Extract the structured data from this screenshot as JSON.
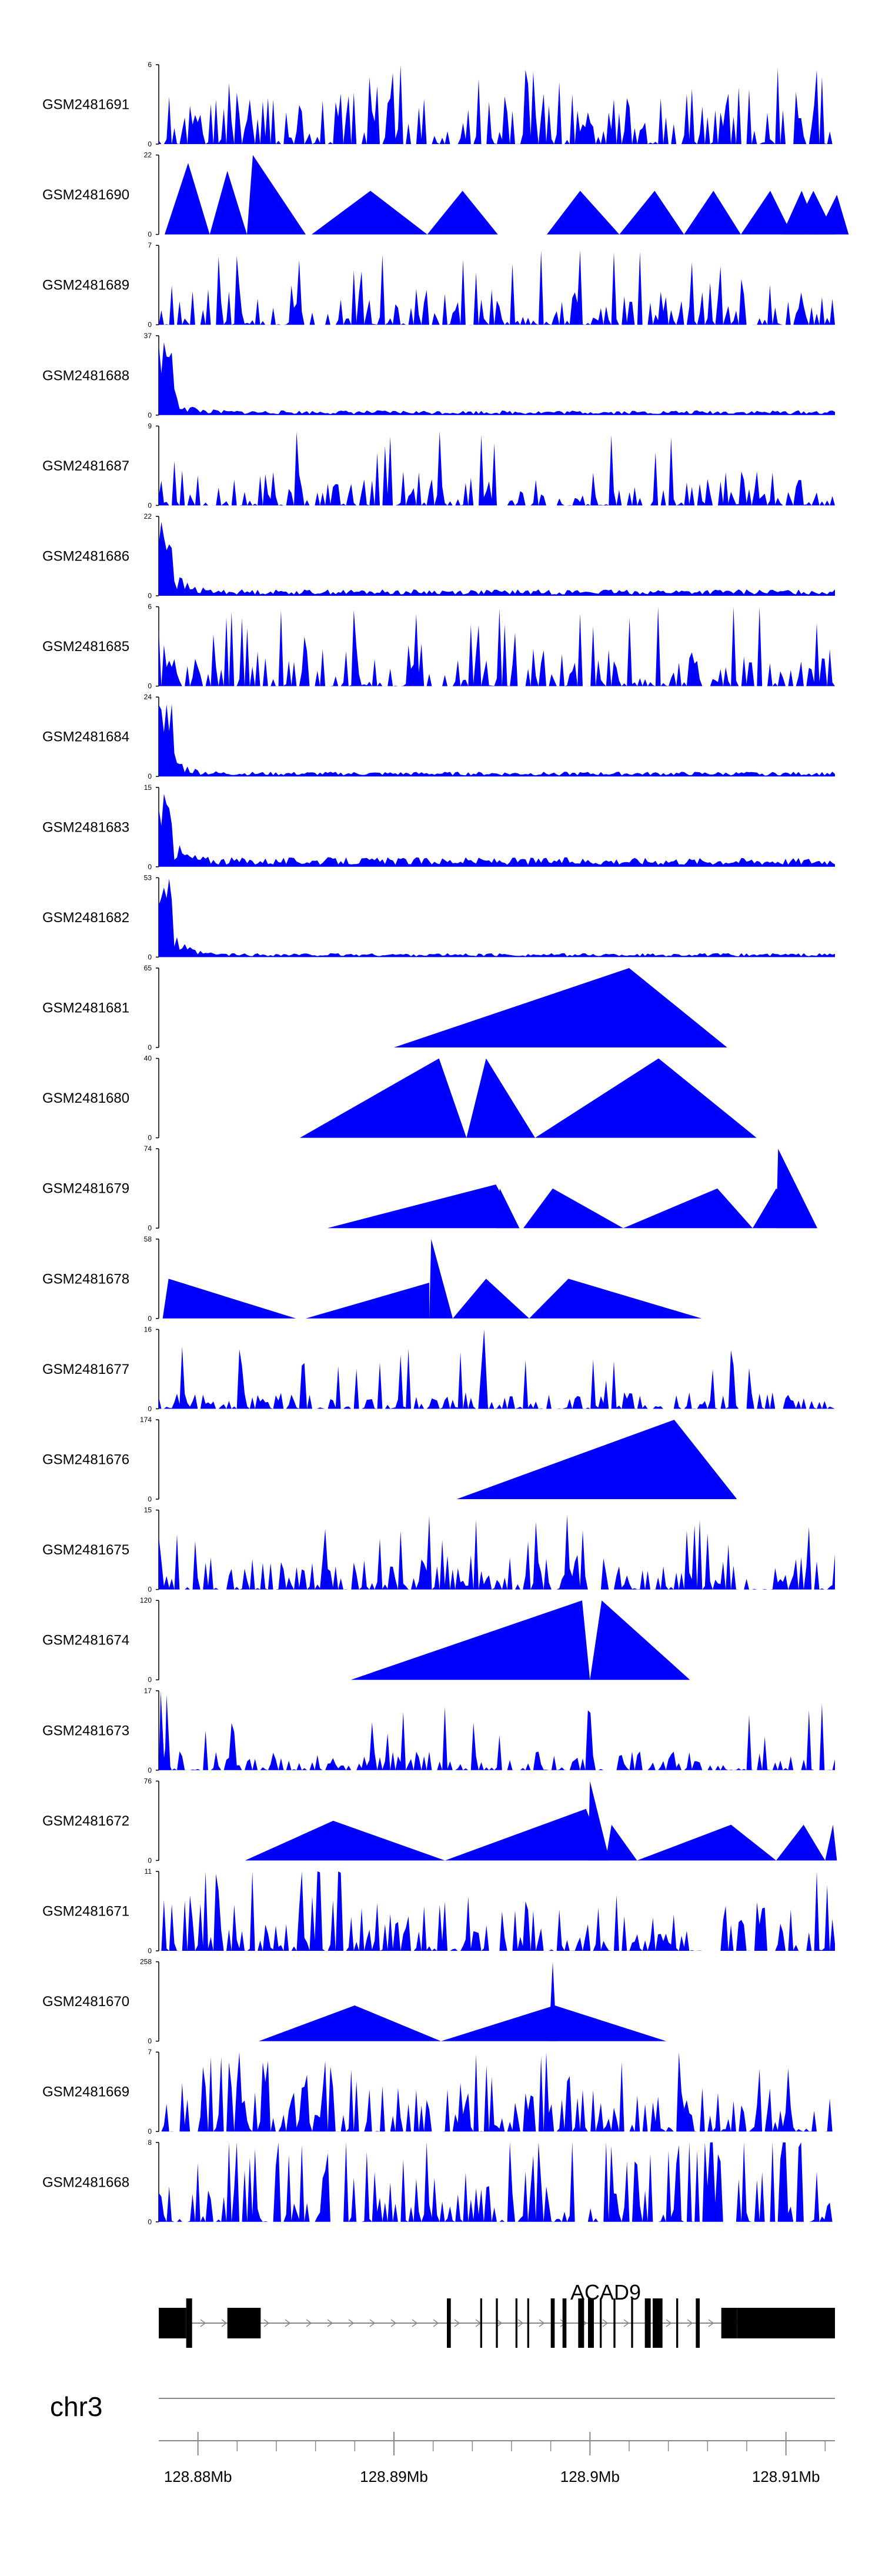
{
  "chart_data": {
    "type": "area",
    "title": "",
    "chromosome": "chr3",
    "gene": "ACAD9",
    "x_unit": "Mb",
    "xlim": [
      128.878,
      128.9125
    ],
    "x_ticks": [
      128.88,
      128.89,
      128.9,
      128.91
    ],
    "x_tick_labels": [
      "128.88Mb",
      "128.89Mb",
      "128.9Mb",
      "128.91Mb"
    ],
    "fill_color": "#0000ff",
    "gene_color": "#000000",
    "tracks": [
      {
        "id": "GSM2481691",
        "ymax": "6",
        "type": "noise",
        "seed": 11,
        "density": 1.2,
        "spike": 0.55
      },
      {
        "id": "GSM2481690",
        "ymax": "22",
        "type": "peaks",
        "peaks": [
          [
            128.8783,
            128.8795,
            128.8806,
            0.9
          ],
          [
            128.8806,
            128.8815,
            128.8825,
            0.8
          ],
          [
            128.8825,
            128.8828,
            128.8855,
            1.0
          ],
          [
            128.8828,
            128.8835,
            128.8828,
            0.0
          ],
          [
            128.8858,
            128.8888,
            128.8917,
            0.55
          ],
          [
            128.8917,
            128.8935,
            128.8953,
            0.55
          ],
          [
            128.8978,
            128.8995,
            128.9015,
            0.55
          ],
          [
            128.9015,
            128.9033,
            128.9048,
            0.55
          ],
          [
            128.9048,
            128.9063,
            128.9077,
            0.55
          ],
          [
            128.9077,
            128.9092,
            128.9103,
            0.55
          ],
          [
            128.9103,
            128.9114,
            128.9125,
            0.55
          ],
          [
            128.9098,
            128.9108,
            128.9117,
            0.55
          ],
          [
            128.9116,
            128.9126,
            128.9132,
            0.5
          ]
        ]
      },
      {
        "id": "GSM2481689",
        "ymax": "7",
        "type": "noise",
        "seed": 22,
        "density": 1.0,
        "spike": 0.5
      },
      {
        "id": "GSM2481688",
        "ymax": "37",
        "type": "decay",
        "seed": 33,
        "start": 1.0,
        "base": 0.06
      },
      {
        "id": "GSM2481687",
        "ymax": "9",
        "type": "noise",
        "seed": 44,
        "density": 0.9,
        "spike": 0.5
      },
      {
        "id": "GSM2481686",
        "ymax": "22",
        "type": "decay",
        "seed": 55,
        "start": 1.0,
        "base": 0.08
      },
      {
        "id": "GSM2481685",
        "ymax": "6",
        "type": "noise",
        "seed": 66,
        "density": 0.9,
        "spike": 0.6
      },
      {
        "id": "GSM2481684",
        "ymax": "24",
        "type": "decay",
        "seed": 77,
        "start": 1.0,
        "base": 0.06
      },
      {
        "id": "GSM2481683",
        "ymax": "15",
        "type": "decay",
        "seed": 88,
        "start": 0.95,
        "base": 0.12
      },
      {
        "id": "GSM2481682",
        "ymax": "53",
        "type": "decay",
        "seed": 99,
        "start": 1.0,
        "base": 0.05
      },
      {
        "id": "GSM2481681",
        "ymax": "65",
        "type": "peaks",
        "peaks": [
          [
            128.89,
            128.902,
            128.907,
            1.0
          ]
        ]
      },
      {
        "id": "GSM2481680",
        "ymax": "40",
        "type": "peaks",
        "peaks": [
          [
            128.8852,
            128.8923,
            128.8937,
            1.0
          ],
          [
            128.8937,
            128.8947,
            128.8972,
            1.0
          ],
          [
            128.8972,
            128.9035,
            128.9085,
            1.0
          ]
        ]
      },
      {
        "id": "GSM2481679",
        "ymax": "74",
        "type": "peaks",
        "peaks": [
          [
            128.8866,
            128.8952,
            128.8964,
            0.55
          ],
          [
            128.8952,
            128.8954,
            128.8964,
            0.5
          ],
          [
            128.8966,
            128.8981,
            128.9017,
            0.5
          ],
          [
            128.9017,
            128.9065,
            128.9083,
            0.5
          ],
          [
            128.9083,
            128.9095,
            128.9116,
            0.5
          ],
          [
            128.9095,
            128.9096,
            128.9116,
            1.0
          ]
        ]
      },
      {
        "id": "GSM2481678",
        "ymax": "58",
        "type": "peaks",
        "peaks": [
          [
            128.8782,
            128.8785,
            128.885,
            0.5
          ],
          [
            128.8855,
            128.8918,
            128.8918,
            0.45
          ],
          [
            128.8918,
            128.8919,
            128.893,
            1.0
          ],
          [
            128.893,
            128.8947,
            128.8969,
            0.5
          ],
          [
            128.8969,
            128.8989,
            128.9057,
            0.5
          ]
        ]
      },
      {
        "id": "GSM2481677",
        "ymax": "16",
        "type": "noise",
        "seed": 111,
        "density": 0.6,
        "spike": 0.35,
        "extra": [
          [
            128.8943,
            128.8946,
            128.8948,
            1.0
          ]
        ]
      },
      {
        "id": "GSM2481676",
        "ymax": "174",
        "type": "peaks",
        "peaks": [
          [
            128.8932,
            128.9043,
            128.9075,
            1.0
          ]
        ]
      },
      {
        "id": "GSM2481675",
        "ymax": "15",
        "type": "noise",
        "seed": 122,
        "density": 0.8,
        "spike": 0.55
      },
      {
        "id": "GSM2481674",
        "ymax": "120",
        "type": "peaks",
        "peaks": [
          [
            128.8878,
            128.8996,
            128.9,
            1.0
          ],
          [
            128.9,
            128.9006,
            128.9051,
            1.0
          ]
        ]
      },
      {
        "id": "GSM2481673",
        "ymax": "17",
        "type": "noise",
        "seed": 133,
        "density": 0.6,
        "spike": 0.4,
        "extra": [
          [
            128.878,
            128.8781,
            128.8783,
            1.0
          ],
          [
            128.8783,
            128.8784,
            128.8786,
            0.95
          ]
        ]
      },
      {
        "id": "GSM2481672",
        "ymax": "76",
        "type": "peaks",
        "peaks": [
          [
            128.8824,
            128.8869,
            128.8926,
            0.5
          ],
          [
            128.8926,
            128.8998,
            128.9008,
            0.65
          ],
          [
            128.8999,
            128.9,
            128.901,
            1.0
          ],
          [
            128.9008,
            128.9011,
            128.9024,
            0.45
          ],
          [
            128.9024,
            128.9072,
            128.9095,
            0.45
          ],
          [
            128.9095,
            128.9109,
            128.912,
            0.45
          ],
          [
            128.912,
            128.9124,
            128.9126,
            0.45
          ]
        ]
      },
      {
        "id": "GSM2481671",
        "ymax": "11",
        "type": "noise",
        "seed": 144,
        "density": 1.0,
        "spike": 0.65
      },
      {
        "id": "GSM2481670",
        "ymax": "258",
        "type": "peaks",
        "peaks": [
          [
            128.8831,
            128.888,
            128.8924,
            0.45
          ],
          [
            128.8924,
            128.8982,
            128.9039,
            0.45
          ],
          [
            128.8979,
            128.8981,
            128.8983,
            1.0
          ]
        ]
      },
      {
        "id": "GSM2481669",
        "ymax": "7",
        "type": "noise",
        "seed": 155,
        "density": 1.1,
        "spike": 0.6
      },
      {
        "id": "GSM2481668",
        "ymax": "8",
        "type": "noise",
        "seed": 166,
        "density": 1.3,
        "spike": 0.85
      }
    ],
    "gene_exons": [
      [
        128.878,
        128.8794
      ],
      [
        128.8794,
        128.8797
      ],
      [
        128.8815,
        128.8832
      ],
      [
        128.8927,
        128.8929
      ],
      [
        128.8944,
        128.8945
      ],
      [
        128.8952,
        128.8953
      ],
      [
        128.8962,
        128.8963
      ],
      [
        128.8968,
        128.8969
      ],
      [
        128.898,
        128.8982
      ],
      [
        128.8986,
        128.8988
      ],
      [
        128.8994,
        128.8997
      ],
      [
        128.8999,
        128.9002
      ],
      [
        128.9005,
        128.9006
      ],
      [
        128.9012,
        128.9013
      ],
      [
        128.9021,
        128.9022
      ],
      [
        128.9028,
        128.9031
      ],
      [
        128.9032,
        128.9037
      ],
      [
        128.9044,
        128.9045
      ],
      [
        128.9054,
        128.9056
      ],
      [
        128.9067,
        128.9075
      ],
      [
        128.9075,
        128.9085
      ],
      [
        128.9082,
        128.9088
      ],
      [
        128.9087,
        128.9098
      ],
      [
        128.9098,
        128.9125
      ]
    ],
    "gene_start": 128.878,
    "gene_end": 128.9125
  }
}
